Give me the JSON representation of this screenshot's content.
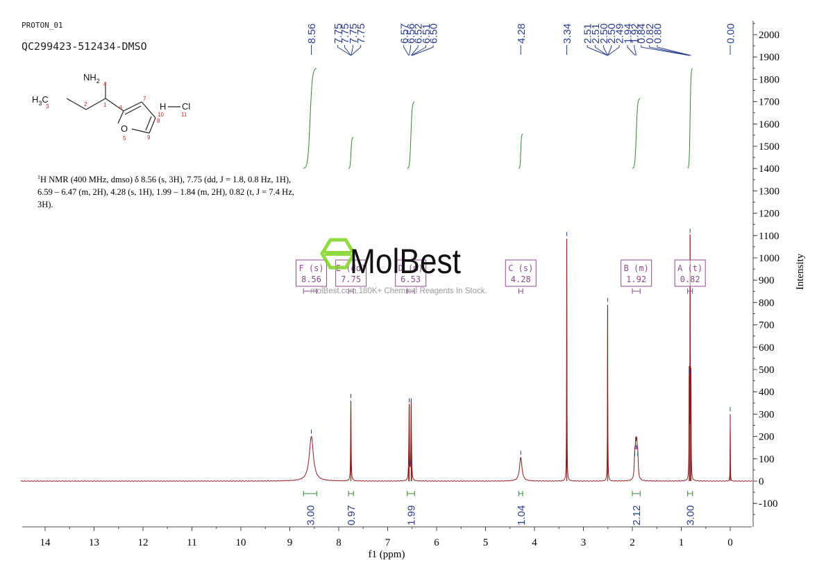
{
  "header": {
    "experiment": "PROTON_01",
    "sample": "QC299423-512434-DMSO"
  },
  "structure": {
    "atoms": [
      {
        "id": "NH2",
        "label": "NH",
        "sub": "2"
      },
      {
        "id": "H3C",
        "label": "H",
        "sub": "3",
        "suffix": "C"
      },
      {
        "id": "O",
        "label": "O"
      },
      {
        "id": "H",
        "label": "H"
      },
      {
        "id": "Cl",
        "label": "Cl"
      }
    ],
    "numbers": [
      "4",
      "3",
      "2",
      "1",
      "6",
      "7",
      "8",
      "9",
      "5",
      "10",
      "11"
    ]
  },
  "nmr_summary": {
    "nucleus_sup": "1",
    "text": "H NMR (400 MHz, dmso) δ 8.56 (s, 3H), 7.75 (dd, J = 1.8, 0.8 Hz, 1H), 6.59 – 6.47 (m, 2H), 4.28 (s, 1H), 1.99 – 1.84 (m, 2H), 0.82 (t, J = 7.4 Hz, 3H)."
  },
  "watermark": {
    "brand": "MolBest",
    "subtitle": "molBest.com,180K+ Chemical Reagents In Stock."
  },
  "chart_data": {
    "type": "line",
    "xlabel": "f1 (ppm)",
    "ylabel": "Intensity",
    "xlim": [
      14.5,
      -0.4
    ],
    "ylim": [
      -200,
      2080
    ],
    "x_ticks": [
      14,
      13,
      12,
      11,
      10,
      9,
      8,
      7,
      6,
      5,
      4,
      3,
      2,
      1,
      0
    ],
    "y_ticks": [
      -100,
      0,
      100,
      200,
      300,
      400,
      500,
      600,
      700,
      800,
      900,
      1000,
      1100,
      1200,
      1300,
      1400,
      1500,
      1600,
      1700,
      1800,
      1900,
      2000
    ],
    "colors": {
      "spectrum": "#8b1a1a",
      "peak_labels": "#2b3d8f",
      "integrals": "#2e8b2e",
      "multiplet_boxes": "#8e4a8e"
    },
    "peaks": [
      {
        "ppm": 8.56,
        "height": 200,
        "width": 0.05
      },
      {
        "ppm": 7.752,
        "height": 360,
        "width": 0.006
      },
      {
        "ppm": 6.57,
        "height": 60,
        "width": 0.006
      },
      {
        "ppm": 6.56,
        "height": 340,
        "width": 0.006
      },
      {
        "ppm": 6.52,
        "height": 340,
        "width": 0.006
      },
      {
        "ppm": 6.51,
        "height": 60,
        "width": 0.006
      },
      {
        "ppm": 4.28,
        "height": 105,
        "width": 0.03
      },
      {
        "ppm": 3.34,
        "height": 1085,
        "width": 0.004
      },
      {
        "ppm": 2.505,
        "height": 790,
        "width": 0.004
      },
      {
        "ppm": 1.95,
        "height": 100,
        "width": 0.012
      },
      {
        "ppm": 1.93,
        "height": 130,
        "width": 0.012
      },
      {
        "ppm": 1.91,
        "height": 130,
        "width": 0.012
      },
      {
        "ppm": 1.89,
        "height": 100,
        "width": 0.012
      },
      {
        "ppm": 0.838,
        "height": 470,
        "width": 0.004
      },
      {
        "ppm": 0.82,
        "height": 1100,
        "width": 0.004
      },
      {
        "ppm": 0.802,
        "height": 470,
        "width": 0.004
      },
      {
        "ppm": 0.0,
        "height": 300,
        "width": 0.003
      }
    ],
    "peak_label_groups": [
      {
        "labels": [
          "8.56"
        ],
        "ppm": [
          8.56
        ],
        "label_x_ppm": [
          8.56
        ]
      },
      {
        "labels": [
          "7.75",
          "7.75",
          "7.75",
          "7.75"
        ],
        "ppm": [
          7.752,
          7.751,
          7.749,
          7.748
        ],
        "label_x_ppm": [
          8.02,
          7.88,
          7.71,
          7.55
        ]
      },
      {
        "labels": [
          "6.57",
          "6.56",
          "6.52",
          "6.51",
          "6.50"
        ],
        "ppm": [
          6.57,
          6.56,
          6.52,
          6.51,
          6.5
        ],
        "label_x_ppm": [
          6.67,
          6.53,
          6.38,
          6.22,
          6.07
        ]
      },
      {
        "labels": [
          "4.28"
        ],
        "ppm": [
          4.28
        ],
        "label_x_ppm": [
          4.28
        ]
      },
      {
        "labels": [
          "3.34"
        ],
        "ppm": [
          3.34
        ],
        "label_x_ppm": [
          3.34
        ]
      },
      {
        "labels": [
          "2.51",
          "2.51",
          "2.50",
          "2.50",
          "2.49",
          "1.94",
          "1.92",
          "0.84",
          "0.82",
          "0.80"
        ],
        "ppm": [
          2.508,
          2.506,
          2.504,
          2.502,
          2.5,
          1.94,
          1.92,
          0.838,
          0.82,
          0.802
        ],
        "label_x_ppm": [
          2.92,
          2.76,
          2.59,
          2.43,
          2.27,
          2.1,
          1.96,
          1.82,
          1.65,
          1.49
        ]
      },
      {
        "labels": [
          "0.00"
        ],
        "ppm": [
          0.0
        ],
        "label_x_ppm": [
          0.0
        ]
      }
    ],
    "integrals": [
      {
        "value": "3.00",
        "from": 8.72,
        "to": 8.45
      },
      {
        "value": "0.97",
        "from": 7.8,
        "to": 7.7
      },
      {
        "value": "1.99",
        "from": 6.6,
        "to": 6.45
      },
      {
        "value": "1.04",
        "from": 4.32,
        "to": 4.24
      },
      {
        "value": "2.12",
        "from": 2.0,
        "to": 1.84
      },
      {
        "value": "3.00",
        "from": 0.87,
        "to": 0.77
      }
    ],
    "integral_curves": [
      {
        "from": 8.72,
        "to": 8.45,
        "y0": 1400,
        "y1": 1850
      },
      {
        "from": 7.8,
        "to": 7.7,
        "y0": 1400,
        "y1": 1540
      },
      {
        "from": 6.6,
        "to": 6.45,
        "y0": 1400,
        "y1": 1700
      },
      {
        "from": 4.32,
        "to": 4.24,
        "y0": 1400,
        "y1": 1555
      },
      {
        "from": 2.0,
        "to": 1.84,
        "y0": 1400,
        "y1": 1715
      },
      {
        "from": 0.87,
        "to": 0.77,
        "y0": 1400,
        "y1": 1850
      }
    ],
    "multiplets": [
      {
        "label": "F (s)",
        "shift": "8.56",
        "ppm": 8.56,
        "bar_from": 8.72,
        "bar_to": 8.45
      },
      {
        "label": "E (dd)",
        "shift": "7.75",
        "ppm": 7.75,
        "bar_from": 7.8,
        "bar_to": 7.7
      },
      {
        "label": "D (m)",
        "shift": "6.53",
        "ppm": 6.53,
        "bar_from": 6.6,
        "bar_to": 6.45
      },
      {
        "label": "C (s)",
        "shift": "4.28",
        "ppm": 4.28,
        "bar_from": 4.32,
        "bar_to": 4.24
      },
      {
        "label": "B (m)",
        "shift": "1.92",
        "ppm": 1.92,
        "bar_from": 2.0,
        "bar_to": 1.84
      },
      {
        "label": "A (t)",
        "shift": "0.82",
        "ppm": 0.82,
        "bar_from": 0.87,
        "bar_to": 0.77
      }
    ]
  }
}
